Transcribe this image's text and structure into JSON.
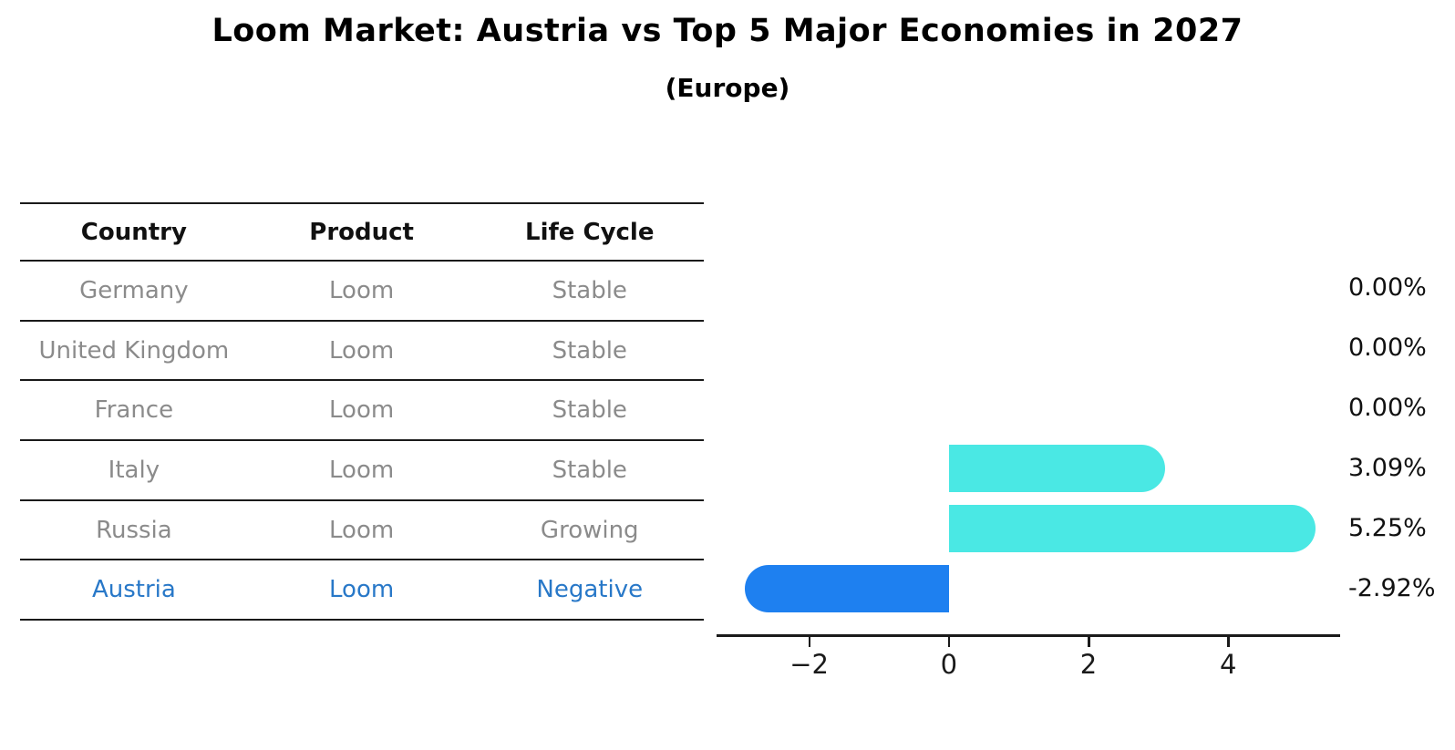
{
  "title": "Loom Market: Austria vs Top 5 Major Economies in 2027",
  "subtitle": "(Europe)",
  "table": {
    "headers": [
      "Country",
      "Product",
      "Life Cycle"
    ],
    "rows": [
      {
        "country": "Germany",
        "product": "Loom",
        "life_cycle": "Stable",
        "highlight": false
      },
      {
        "country": "United Kingdom",
        "product": "Loom",
        "life_cycle": "Stable",
        "highlight": false
      },
      {
        "country": "France",
        "product": "Loom",
        "life_cycle": "Stable",
        "highlight": false
      },
      {
        "country": "Italy",
        "product": "Loom",
        "life_cycle": "Stable",
        "highlight": false
      },
      {
        "country": "Russia",
        "product": "Loom",
        "life_cycle": "Growing",
        "highlight": false
      },
      {
        "country": "Austria",
        "product": "Loom",
        "life_cycle": "Negative",
        "highlight": true
      }
    ]
  },
  "chart_data": {
    "type": "bar",
    "orientation": "horizontal",
    "title": "Loom Market: Austria vs Top 5 Major Economies in 2027",
    "subtitle": "(Europe)",
    "categories": [
      "Germany",
      "United Kingdom",
      "France",
      "Italy",
      "Russia",
      "Austria"
    ],
    "values": [
      0.0,
      0.0,
      0.0,
      3.09,
      5.25,
      -2.92
    ],
    "value_labels": [
      "0.00%",
      "0.00%",
      "0.00%",
      "3.09%",
      "5.25%",
      "-2.92%"
    ],
    "unit": "percent",
    "xticks": [
      -2,
      0,
      2,
      4
    ],
    "xtick_labels": [
      "−2",
      "0",
      "2",
      "4"
    ],
    "xlim": [
      -3.3,
      5.55
    ],
    "grid": false,
    "legend": null,
    "highlight_index": 5,
    "highlight_style": "dotted-edge",
    "colors": {
      "bar_positive": "#4AE8E4",
      "bar_highlight": "#1E80F0",
      "highlight_text": "#2878C8",
      "table_text": "#8b8b8b",
      "header_text": "#111111",
      "axis": "#1a1a1a"
    }
  }
}
